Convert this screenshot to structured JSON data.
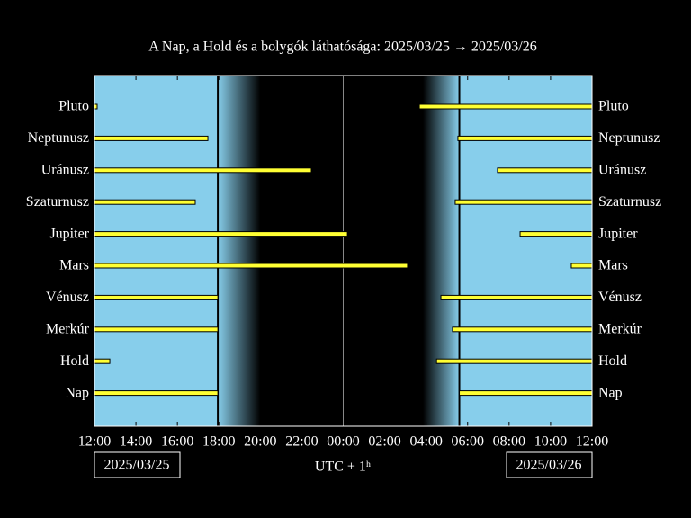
{
  "chart_data": {
    "type": "visibility",
    "title": "A Nap, a Hold és a bolygók láthatósága: 2025/03/25 → 2025/03/26",
    "xlabel": "UTC + 1ʰ",
    "start_date": "2025/03/25",
    "end_date": "2025/03/26",
    "xlim": [
      12,
      36
    ],
    "xticks": [
      {
        "value": 12,
        "label": "12:00"
      },
      {
        "value": 14,
        "label": "14:00"
      },
      {
        "value": 16,
        "label": "16:00"
      },
      {
        "value": 18,
        "label": "18:00"
      },
      {
        "value": 20,
        "label": "20:00"
      },
      {
        "value": 22,
        "label": "22:00"
      },
      {
        "value": 24,
        "label": "00:00"
      },
      {
        "value": 26,
        "label": "02:00"
      },
      {
        "value": 28,
        "label": "04:00"
      },
      {
        "value": 30,
        "label": "06:00"
      },
      {
        "value": 32,
        "label": "08:00"
      },
      {
        "value": 34,
        "label": "10:00"
      },
      {
        "value": 36,
        "label": "12:00"
      }
    ],
    "sunset": 17.95,
    "dark_start": 20.0,
    "dark_end": 27.85,
    "sunrise": 29.6,
    "day_color": "#87ceeb",
    "bar_color": "#ffff33",
    "categories": [
      "Pluto",
      "Neptunusz",
      "Uránusz",
      "Szaturnusz",
      "Jupiter",
      "Mars",
      "Vénusz",
      "Merkúr",
      "Hold",
      "Nap"
    ],
    "segments": [
      [
        [
          12,
          12.13
        ],
        [
          27.67,
          36
        ]
      ],
      [
        [
          12,
          17.47
        ],
        [
          29.53,
          36
        ]
      ],
      [
        [
          12,
          22.46
        ],
        [
          31.44,
          36
        ]
      ],
      [
        [
          12,
          16.86
        ],
        [
          29.4,
          36
        ]
      ],
      [
        [
          12,
          24.2
        ],
        [
          32.53,
          36
        ]
      ],
      [
        [
          12,
          27.1
        ],
        [
          35.0,
          36
        ]
      ],
      [
        [
          12,
          17.95
        ],
        [
          28.71,
          36
        ]
      ],
      [
        [
          12,
          17.95
        ],
        [
          29.27,
          36
        ]
      ],
      [
        [
          12,
          12.74
        ],
        [
          28.5,
          36
        ]
      ],
      [
        [
          12,
          17.95
        ],
        [
          29.6,
          36
        ]
      ]
    ]
  }
}
